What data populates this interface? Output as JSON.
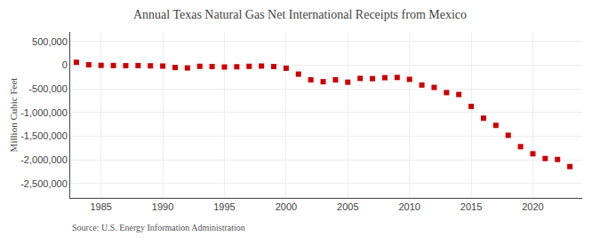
{
  "chart_data": {
    "type": "scatter",
    "title": "Annual Texas Natural Gas Net International Receipts from Mexico",
    "ylabel": "Million Cubic Feet",
    "annotations": [
      "Source: U.S. Energy Information Administration"
    ],
    "x": [
      1983,
      1984,
      1985,
      1986,
      1987,
      1988,
      1989,
      1990,
      1991,
      1992,
      1993,
      1994,
      1995,
      1996,
      1997,
      1998,
      1999,
      2000,
      2001,
      2002,
      2003,
      2004,
      2005,
      2006,
      2007,
      2008,
      2009,
      2010,
      2011,
      2012,
      2013,
      2014,
      2015,
      2016,
      2017,
      2018,
      2019,
      2020,
      2021,
      2022,
      2023
    ],
    "values": [
      60000,
      8000,
      -5000,
      -8000,
      -12000,
      -10000,
      -15000,
      -20000,
      -50000,
      -60000,
      -25000,
      -30000,
      -40000,
      -35000,
      -25000,
      -20000,
      -30000,
      -65000,
      -190000,
      -310000,
      -350000,
      -310000,
      -360000,
      -280000,
      -285000,
      -265000,
      -260000,
      -300000,
      -420000,
      -470000,
      -580000,
      -620000,
      -870000,
      -1120000,
      -1270000,
      -1480000,
      -1720000,
      -1870000,
      -1970000,
      -1990000,
      -2140000
    ],
    "color": "#cc0000",
    "marker": "square",
    "xlim": [
      1982.5,
      2024
    ],
    "xticks": [
      1985,
      1990,
      1995,
      2000,
      2005,
      2010,
      2015,
      2020
    ],
    "ylim": [
      -2800000,
      700000
    ],
    "yticks": [
      {
        "value": 500000,
        "label": "500,000"
      },
      0,
      {
        "value": -500000,
        "label": "-500,000"
      },
      {
        "value": -1000000,
        "label": "-1,000,000"
      },
      {
        "value": -1500000,
        "label": "-1,500,000"
      },
      {
        "value": -2000000,
        "label": "-2,000,000"
      },
      {
        "value": -2500000,
        "label": "-2,500,000"
      }
    ],
    "grid": true
  }
}
